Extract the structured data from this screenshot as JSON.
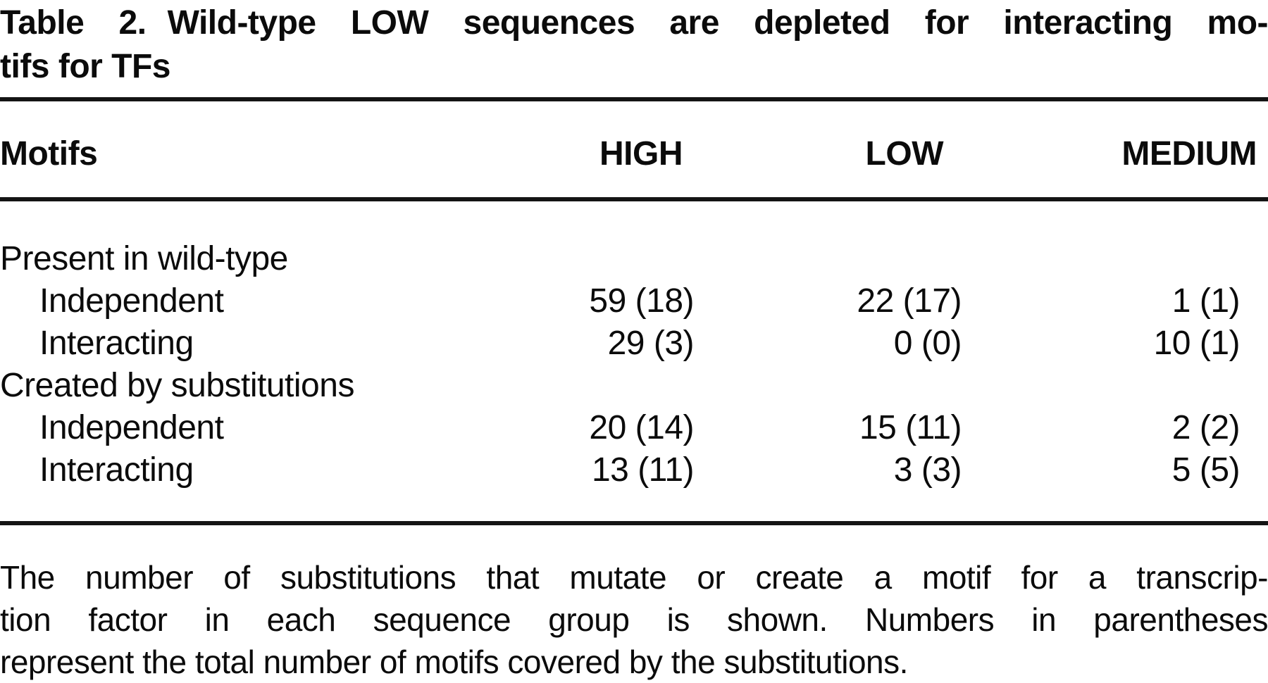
{
  "page": {
    "background": "#ffffff",
    "text_color": "#0b0b0b",
    "rule_color": "#141414"
  },
  "table": {
    "label": "Table 2.",
    "title_line1": "Wild-type LOW sequences are depleted for interacting mo-",
    "title_line2": "tifs for TFs",
    "header": {
      "motifs": "Motifs",
      "high": "HIGH",
      "low": "LOW",
      "medium": "MEDIUM"
    },
    "sections": [
      {
        "header": "Present in wild-type",
        "rows": [
          {
            "label": "Independent",
            "high": "59 (18)",
            "low": "22 (17)",
            "medium": "1 (1)"
          },
          {
            "label": "Interacting",
            "high": "29 (3)",
            "low": "0 (0)",
            "medium": "10 (1)"
          }
        ]
      },
      {
        "header": "Created by substitutions",
        "rows": [
          {
            "label": "Independent",
            "high": "20 (14)",
            "low": "15 (11)",
            "medium": "2 (2)"
          },
          {
            "label": "Interacting",
            "high": "13 (11)",
            "low": "3 (3)",
            "medium": "5 (5)"
          }
        ]
      }
    ],
    "footnote": {
      "line1": "The number of substitutions that mutate or create a motif for a transcrip-",
      "line2": "tion factor in each sequence group is shown. Numbers in parentheses",
      "line3": "represent the total number of motifs covered by the substitutions."
    }
  },
  "chart_data": {
    "type": "table",
    "title": "Table 2. Wild-type LOW sequences are depleted for interacting motifs for TFs",
    "columns": [
      "Motifs",
      "HIGH",
      "LOW",
      "MEDIUM"
    ],
    "rows": [
      [
        "Present in wild-type",
        "",
        "",
        ""
      ],
      [
        "Independent",
        "59 (18)",
        "22 (17)",
        "1 (1)"
      ],
      [
        "Interacting",
        "29 (3)",
        "0 (0)",
        "10 (1)"
      ],
      [
        "Created by substitutions",
        "",
        "",
        ""
      ],
      [
        "Independent",
        "20 (14)",
        "15 (11)",
        "2 (2)"
      ],
      [
        "Interacting",
        "13 (11)",
        "3 (3)",
        "5 (5)"
      ]
    ],
    "footnote": "The number of substitutions that mutate or create a motif for a transcription factor in each sequence group is shown. Numbers in parentheses represent the total number of motifs covered by the substitutions."
  }
}
